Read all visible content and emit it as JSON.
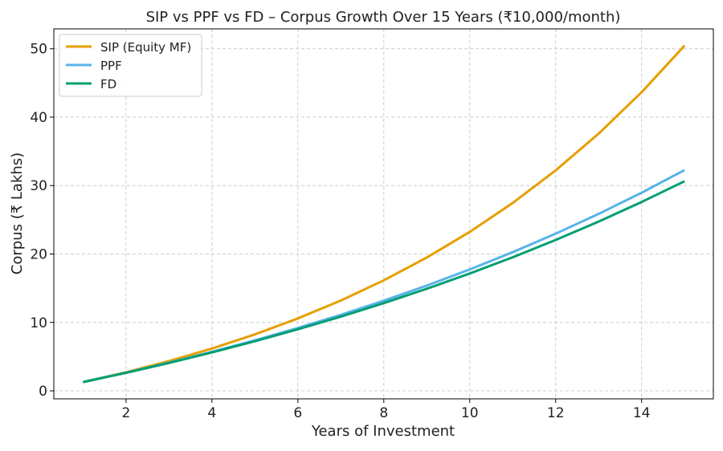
{
  "chart_data": {
    "type": "line",
    "title": "SIP vs PPF vs FD – Corpus Growth Over 15 Years (₹10,000/month)",
    "xlabel": "Years of Investment",
    "ylabel": "Corpus (₹ Lakhs)",
    "xlim": [
      0.32,
      15.67
    ],
    "ylim": [
      -1.17,
      52.9
    ],
    "xticks": [
      2,
      4,
      6,
      8,
      10,
      12,
      14
    ],
    "yticks": [
      0,
      10,
      20,
      30,
      40,
      50
    ],
    "grid": true,
    "legend_position": "top-left",
    "x": [
      1,
      2,
      3,
      4,
      5,
      6,
      7,
      8,
      9,
      10,
      11,
      12,
      13,
      14,
      15
    ],
    "series": [
      {
        "name": "SIP (Equity MF)",
        "color": "#E69F00",
        "values": [
          1.28,
          2.72,
          4.35,
          6.18,
          8.25,
          10.58,
          13.2,
          16.15,
          19.48,
          23.23,
          27.46,
          32.22,
          37.59,
          43.64,
          50.46
        ]
      },
      {
        "name": "PPF",
        "color": "#56B4E9",
        "values": [
          1.28,
          2.66,
          4.13,
          5.7,
          7.38,
          9.19,
          11.11,
          13.17,
          15.38,
          17.74,
          20.27,
          22.97,
          25.86,
          28.96,
          32.27
        ]
      },
      {
        "name": "FD",
        "color": "#009E73",
        "values": [
          1.28,
          2.63,
          4.08,
          5.62,
          7.25,
          9.0,
          10.85,
          12.82,
          14.92,
          17.15,
          19.52,
          22.05,
          24.74,
          27.6,
          30.64
        ]
      }
    ]
  }
}
